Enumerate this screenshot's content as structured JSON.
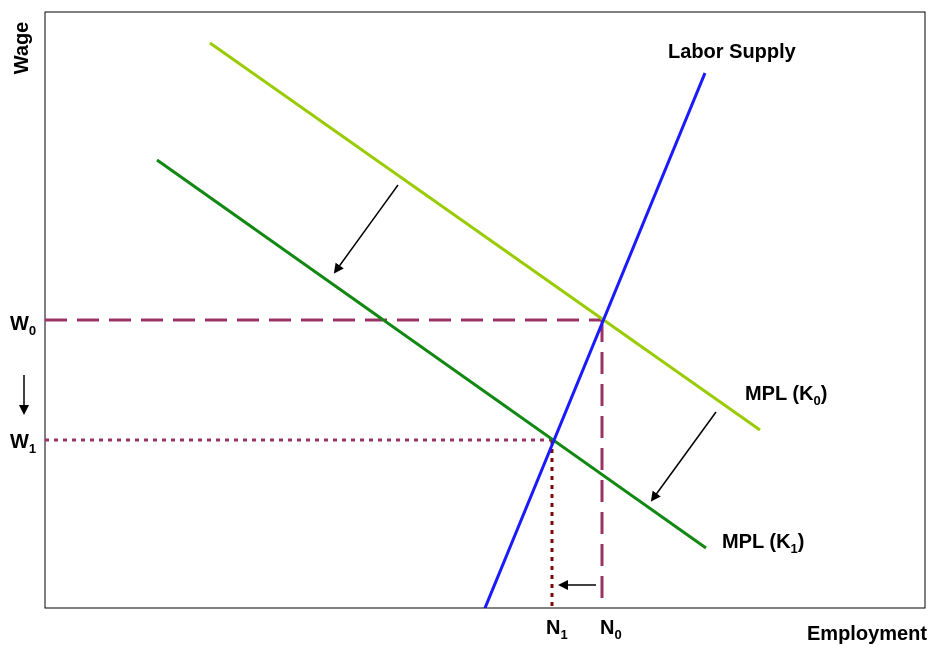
{
  "axes": {
    "y_label": "Wage",
    "x_label": "Employment"
  },
  "curves": {
    "supply": {
      "label": "Labor Supply",
      "color": "#1a1aff"
    },
    "mpl_k0": {
      "label_main": "MPL (K",
      "label_sub": "0",
      "label_end": ")",
      "color": "#99cc00"
    },
    "mpl_k1": {
      "label_main": "MPL (K",
      "label_sub": "1",
      "label_end": ")",
      "color": "#118811"
    }
  },
  "ticks": {
    "w0": {
      "main": "W",
      "sub": "0"
    },
    "w1": {
      "main": "W",
      "sub": "1"
    },
    "n0": {
      "main": "N",
      "sub": "0"
    },
    "n1": {
      "main": "N",
      "sub": "1"
    }
  },
  "guide_color": "#993366",
  "guide_color_dark": "#7a0a0a"
}
